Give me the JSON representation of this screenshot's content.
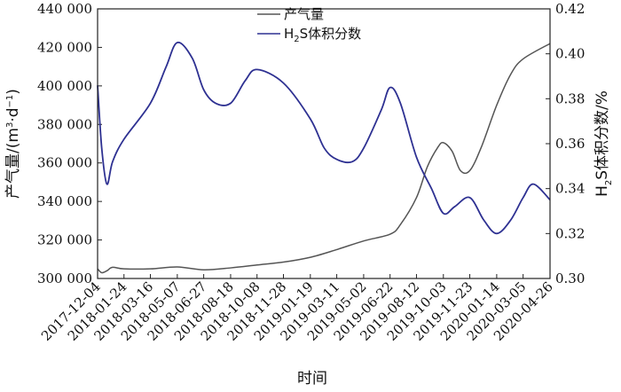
{
  "chart_data": {
    "type": "line",
    "xlabel": "时间",
    "ylabel_left": {
      "main": "产气量/(m",
      "sup1": "3",
      "mid": "·d",
      "sup2": "−1",
      "end": ")"
    },
    "ylabel_right": {
      "pre": "H",
      "sub": "2",
      "post": "S体积分数/%"
    },
    "ylim_left": [
      300000,
      440000
    ],
    "ylim_right": [
      0.3,
      0.42
    ],
    "yticks_left": [
      "300 000",
      "320 000",
      "340 000",
      "360 000",
      "380 000",
      "400 000",
      "420 000",
      "440 000"
    ],
    "yticks_right": [
      "0.30",
      "0.32",
      "0.34",
      "0.36",
      "0.38",
      "0.40",
      "0.42"
    ],
    "xticks": [
      "2017-12-04",
      "2018-01-24",
      "2018-03-16",
      "2018-05-07",
      "2018-06-27",
      "2018-08-18",
      "2018-10-08",
      "2018-11-28",
      "2019-01-19",
      "2019-03-11",
      "2019-05-02",
      "2019-06-22",
      "2019-08-12",
      "2019-10-03",
      "2019-11-23",
      "2020-01-14",
      "2020-03-05",
      "2020-04-26"
    ],
    "legend": {
      "gas": "产气量",
      "h2s": {
        "pre": "H",
        "sub": "2",
        "post": "S体积分数"
      }
    },
    "colors": {
      "gas": "#555555",
      "h2s": "#2e3192"
    },
    "series": [
      {
        "key": "gas",
        "axis": "left",
        "x": [
          "2017-12-04",
          "2017-12-12",
          "2017-12-22",
          "2018-01-02",
          "2018-01-24",
          "2018-03-16",
          "2018-05-07",
          "2018-06-27",
          "2018-08-18",
          "2018-10-08",
          "2018-11-28",
          "2019-01-19",
          "2019-03-11",
          "2019-05-02",
          "2019-06-22",
          "2019-07-12",
          "2019-08-12",
          "2019-09-02",
          "2019-09-22",
          "2019-10-03",
          "2019-10-20",
          "2019-11-05",
          "2019-11-23",
          "2019-12-15",
          "2020-01-14",
          "2020-02-10",
          "2020-03-05",
          "2020-04-26"
        ],
        "y": [
          305000,
          303000,
          304000,
          305800,
          305000,
          305000,
          306000,
          304500,
          305500,
          307000,
          308500,
          311000,
          315000,
          319500,
          323000,
          328000,
          342000,
          358000,
          368000,
          370500,
          366000,
          356000,
          356000,
          368000,
          390000,
          406000,
          414000,
          422000
        ]
      },
      {
        "key": "h2s",
        "axis": "right",
        "x": [
          "2017-12-04",
          "2017-12-12",
          "2017-12-22",
          "2018-01-02",
          "2018-01-24",
          "2018-03-16",
          "2018-04-15",
          "2018-05-07",
          "2018-06-05",
          "2018-06-27",
          "2018-07-20",
          "2018-08-18",
          "2018-09-15",
          "2018-10-08",
          "2018-11-28",
          "2019-01-19",
          "2019-02-15",
          "2019-03-11",
          "2019-04-10",
          "2019-05-02",
          "2019-06-05",
          "2019-06-22",
          "2019-07-12",
          "2019-08-12",
          "2019-09-10",
          "2019-10-03",
          "2019-10-25",
          "2019-11-23",
          "2019-12-20",
          "2020-01-14",
          "2020-02-10",
          "2020-03-05",
          "2020-03-25",
          "2020-04-26"
        ],
        "y": [
          0.386,
          0.358,
          0.342,
          0.352,
          0.362,
          0.378,
          0.394,
          0.405,
          0.398,
          0.384,
          0.378,
          0.378,
          0.388,
          0.393,
          0.387,
          0.371,
          0.358,
          0.353,
          0.352,
          0.358,
          0.375,
          0.385,
          0.378,
          0.354,
          0.34,
          0.329,
          0.332,
          0.336,
          0.326,
          0.32,
          0.326,
          0.336,
          0.342,
          0.335
        ]
      }
    ]
  }
}
